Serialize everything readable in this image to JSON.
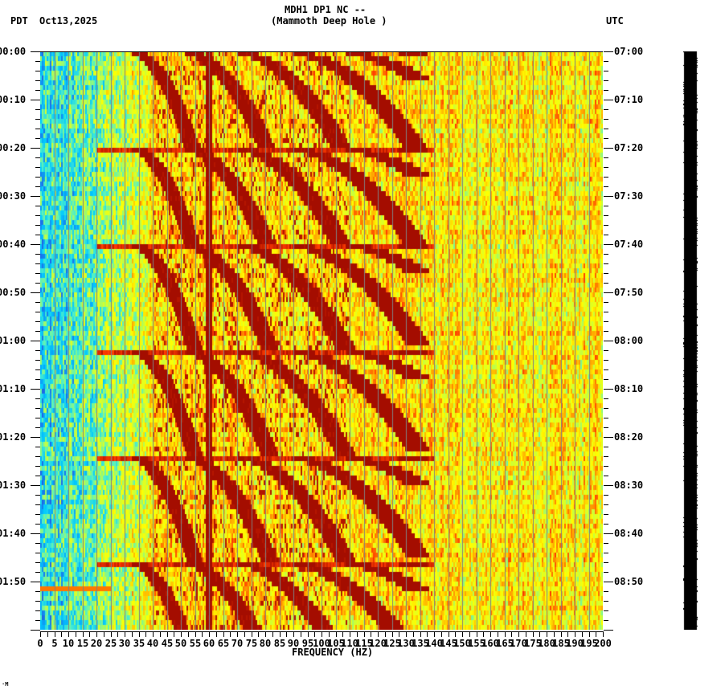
{
  "header": {
    "title_line1": "MDH1 DP1 NC --",
    "title_line2": "(Mammoth Deep Hole )",
    "left_tz": "PDT",
    "date": "Oct13,2025",
    "right_tz": "UTC"
  },
  "footer": {
    "xlabel": "FREQUENCY (HZ)",
    "mark": "·M"
  },
  "chart_data": {
    "type": "heatmap",
    "title": "MDH1 DP1 NC -- (Mammoth Deep Hole )",
    "subtitle": "PDT Oct13,2025 / UTC",
    "xlabel": "FREQUENCY (HZ)",
    "ylabel_left": "PDT time",
    "ylabel_right": "UTC time",
    "xlim": [
      0,
      200
    ],
    "x_ticks": [
      0,
      5,
      10,
      15,
      20,
      25,
      30,
      35,
      40,
      45,
      50,
      55,
      60,
      65,
      70,
      75,
      80,
      85,
      90,
      95,
      100,
      105,
      110,
      115,
      120,
      125,
      130,
      135,
      140,
      145,
      150,
      155,
      160,
      165,
      170,
      175,
      180,
      185,
      190,
      195,
      200
    ],
    "y_ticks_left": [
      "00:00",
      "00:10",
      "00:20",
      "00:30",
      "00:40",
      "00:50",
      "01:00",
      "01:10",
      "01:20",
      "01:30",
      "01:40",
      "01:50"
    ],
    "y_ticks_right": [
      "07:00",
      "07:10",
      "07:20",
      "07:30",
      "07:40",
      "07:50",
      "08:00",
      "08:10",
      "08:20",
      "08:30",
      "08:40",
      "08:50"
    ],
    "time_span_minutes": 120,
    "grid": "vertical lines every 5 Hz",
    "colormap": [
      "#1e64e6",
      "#00c8ff",
      "#50f0c8",
      "#c8ff3c",
      "#ffff00",
      "#ffaa00",
      "#ff3c00",
      "#8c0000"
    ],
    "features": {
      "low_freq_band_hz": [
        0,
        25
      ],
      "low_freq_color": "cyan/blue (low power)",
      "persistent_line_hz": 60,
      "sweep_cycles_start_minutes": [
        0,
        20,
        40,
        62,
        84,
        106
      ],
      "sweep_cycle_length_minutes": 22,
      "sweep_description": "repeating curved dark-red harmonic arcs sweeping from ~20 Hz upward to ~130 Hz each cycle",
      "high_freq_band_hz": [
        130,
        200
      ],
      "high_freq_color": "yellow/orange/red mix"
    }
  }
}
